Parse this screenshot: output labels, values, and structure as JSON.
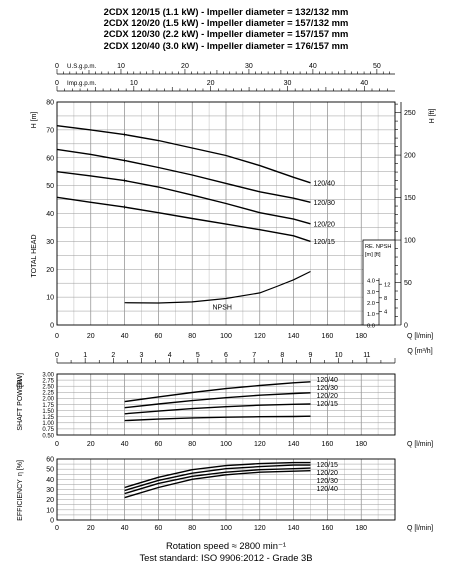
{
  "titles": [
    "2CDX 120/15 (1.1 kW) - Impeller diameter = 132/132 mm",
    "2CDX 120/20 (1.5 kW) - Impeller diameter = 157/132 mm",
    "2CDX 120/30 (2.2 kW) - Impeller diameter = 157/157 mm",
    "2CDX 120/40 (3.0 kW) - Impeller diameter = 176/157 mm"
  ],
  "footer": {
    "rotation": "Rotation speed ≈ 2800 min⁻¹",
    "standard": "Test standard: ISO 9906:2012 - Grade 3B"
  },
  "chart_data": [
    {
      "type": "line",
      "panel": "head",
      "top_axes": [
        {
          "label": "U.S.g.p.m.",
          "ticks": [
            0,
            10,
            20,
            30,
            40,
            50
          ]
        },
        {
          "label": "Imp.g.p.m.",
          "ticks": [
            0,
            10,
            20,
            30,
            40
          ]
        }
      ],
      "ylabel": "TOTAL HEAD",
      "ylabel_unit": "H [m]",
      "y2label_unit": "H [ft]",
      "ylim": [
        0,
        80
      ],
      "yticks": [
        0,
        10,
        20,
        30,
        40,
        50,
        60,
        70,
        80
      ],
      "y2ticks": [
        0,
        50,
        100,
        150,
        200,
        250
      ],
      "xlabel": "Q [l/min]",
      "xlim": [
        0,
        200
      ],
      "xticks": [
        0,
        20,
        40,
        60,
        80,
        100,
        120,
        140,
        160,
        180
      ],
      "grid": true,
      "series": [
        {
          "name": "120/40",
          "x": [
            0,
            20,
            40,
            60,
            80,
            100,
            120,
            140,
            150
          ],
          "y": [
            71.5,
            70.0,
            68.3,
            66.2,
            63.5,
            60.8,
            57.2,
            53.0,
            51.0
          ]
        },
        {
          "name": "120/30",
          "x": [
            0,
            20,
            40,
            60,
            80,
            100,
            120,
            140,
            150
          ],
          "y": [
            63.0,
            61.2,
            59.0,
            56.5,
            53.8,
            50.8,
            47.8,
            45.5,
            44.0
          ]
        },
        {
          "name": "120/20",
          "x": [
            0,
            20,
            40,
            60,
            80,
            100,
            120,
            140,
            150
          ],
          "y": [
            55.0,
            53.5,
            51.8,
            49.5,
            46.6,
            43.6,
            40.3,
            38.0,
            36.3
          ]
        },
        {
          "name": "120/15",
          "x": [
            0,
            20,
            40,
            60,
            80,
            100,
            120,
            140,
            150
          ],
          "y": [
            45.8,
            44.0,
            42.3,
            40.3,
            38.2,
            36.2,
            34.2,
            32.0,
            30.0
          ]
        }
      ],
      "npsh": {
        "name": "NPSH",
        "box_header": "RE. NPSH",
        "box_units": "[m] [ft]",
        "x": [
          40,
          60,
          80,
          100,
          120,
          130,
          140,
          150
        ],
        "y": [
          8.0,
          7.9,
          8.3,
          9.5,
          11.5,
          13.8,
          16.2,
          19.2
        ],
        "m_ticks": [
          0,
          1.0,
          2.0,
          3.0,
          4.0
        ],
        "ft_ticks": [
          4,
          8,
          12
        ]
      }
    },
    {
      "type": "line",
      "panel": "shaft_power",
      "top_axis": {
        "label": "Q [m³/h]",
        "ticks": [
          0,
          1,
          2,
          3,
          4,
          5,
          6,
          7,
          8,
          9,
          10,
          11
        ]
      },
      "ylabel": "SHAFT POWER",
      "ylabel_unit": "[kW]",
      "ylim": [
        0.5,
        3.0
      ],
      "yticks": [
        0.5,
        0.75,
        1.0,
        1.25,
        1.5,
        1.75,
        2.0,
        2.25,
        2.5,
        2.75,
        3.0
      ],
      "xlabel": "Q [l/min]",
      "xlim": [
        0,
        200
      ],
      "xticks": [
        0,
        20,
        40,
        60,
        80,
        100,
        120,
        140,
        160,
        180
      ],
      "grid": true,
      "series": [
        {
          "name": "120/40",
          "x": [
            40,
            60,
            80,
            100,
            120,
            140,
            150
          ],
          "y": [
            1.87,
            2.06,
            2.24,
            2.4,
            2.53,
            2.64,
            2.68
          ]
        },
        {
          "name": "120/30",
          "x": [
            40,
            60,
            80,
            100,
            120,
            140,
            150
          ],
          "y": [
            1.62,
            1.77,
            1.91,
            2.03,
            2.13,
            2.2,
            2.23
          ]
        },
        {
          "name": "120/20",
          "x": [
            40,
            60,
            80,
            100,
            120,
            140,
            150
          ],
          "y": [
            1.37,
            1.48,
            1.58,
            1.66,
            1.72,
            1.76,
            1.77
          ]
        },
        {
          "name": "120/15",
          "x": [
            40,
            60,
            80,
            100,
            120,
            140,
            150
          ],
          "y": [
            1.09,
            1.15,
            1.2,
            1.23,
            1.25,
            1.26,
            1.27
          ]
        }
      ]
    },
    {
      "type": "line",
      "panel": "efficiency",
      "ylabel": "EFFICIENCY",
      "ylabel_unit": "η [%]",
      "ylim": [
        0,
        60
      ],
      "yticks": [
        0,
        10,
        20,
        30,
        40,
        50,
        60
      ],
      "xlabel": "Q [l/min]",
      "xlim": [
        0,
        200
      ],
      "xticks": [
        0,
        20,
        40,
        60,
        80,
        100,
        120,
        140,
        160,
        180
      ],
      "grid": true,
      "series": [
        {
          "name": "120/15",
          "x": [
            40,
            60,
            80,
            100,
            120,
            140,
            150
          ],
          "y": [
            32,
            42,
            49.5,
            53.5,
            55.5,
            56.5,
            56.5
          ]
        },
        {
          "name": "120/20",
          "x": [
            40,
            60,
            80,
            100,
            120,
            140,
            150
          ],
          "y": [
            29,
            39,
            46,
            50.5,
            52.5,
            54,
            54
          ]
        },
        {
          "name": "120/30",
          "x": [
            40,
            60,
            80,
            100,
            120,
            140,
            150
          ],
          "y": [
            26,
            36,
            43,
            47,
            49.5,
            50.5,
            51
          ]
        },
        {
          "name": "120/40",
          "x": [
            40,
            60,
            80,
            100,
            120,
            140,
            150
          ],
          "y": [
            22,
            32,
            40,
            44.5,
            47,
            48,
            48.5
          ]
        }
      ]
    }
  ]
}
